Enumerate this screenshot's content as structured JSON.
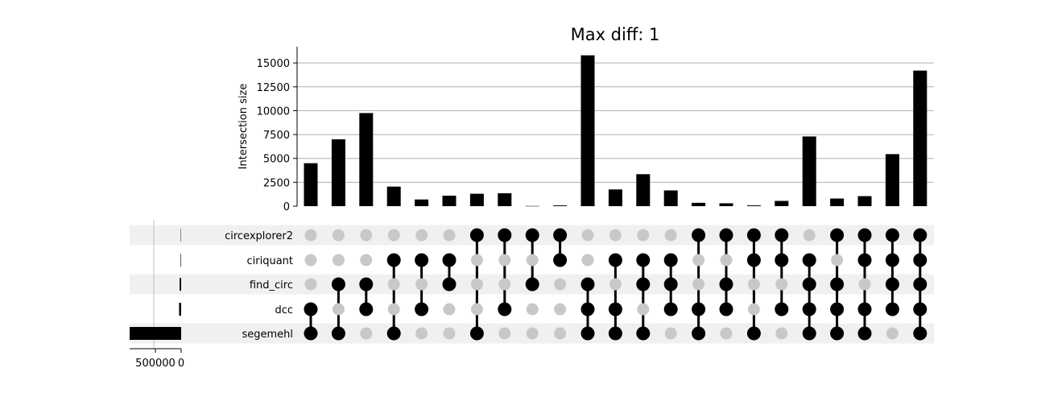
{
  "chart_data": {
    "type": "upset",
    "title": "Max diff: 1",
    "ylabel": "Intersection size",
    "ylim": [
      0,
      16700
    ],
    "yticks": [
      0,
      2500,
      5000,
      7500,
      10000,
      12500,
      15000
    ],
    "ytick_labels": [
      "0",
      "2500",
      "5000",
      "7500",
      "10000",
      "12500",
      "15000"
    ],
    "grid": true,
    "sets": [
      "circexplorer2",
      "ciriquant",
      "find_circ",
      "dcc",
      "segemehl"
    ],
    "set_sizes": [
      7000,
      10000,
      30000,
      40000,
      1000000
    ],
    "set_size_xlim": [
      1000000,
      0
    ],
    "set_size_ticks": [
      500000,
      0
    ],
    "set_size_tick_labels": [
      "500000",
      "0"
    ],
    "intersection_values": [
      4500,
      7000,
      9750,
      2050,
      700,
      1100,
      1300,
      1350,
      20,
      80,
      15800,
      1750,
      3350,
      1650,
      350,
      300,
      80,
      550,
      7300,
      800,
      1050,
      5450,
      14200
    ],
    "memberships": [
      [
        0,
        0,
        0,
        1,
        1
      ],
      [
        0,
        0,
        1,
        0,
        1
      ],
      [
        0,
        0,
        1,
        1,
        0
      ],
      [
        0,
        1,
        0,
        0,
        1
      ],
      [
        0,
        1,
        0,
        1,
        0
      ],
      [
        0,
        1,
        1,
        0,
        0
      ],
      [
        1,
        0,
        0,
        0,
        1
      ],
      [
        1,
        0,
        0,
        1,
        0
      ],
      [
        1,
        0,
        1,
        0,
        0
      ],
      [
        1,
        1,
        0,
        0,
        0
      ],
      [
        0,
        0,
        1,
        1,
        1
      ],
      [
        0,
        1,
        0,
        1,
        1
      ],
      [
        0,
        1,
        1,
        0,
        1
      ],
      [
        0,
        1,
        1,
        1,
        0
      ],
      [
        1,
        0,
        0,
        1,
        1
      ],
      [
        1,
        0,
        1,
        1,
        0
      ],
      [
        1,
        1,
        0,
        0,
        1
      ],
      [
        1,
        1,
        0,
        1,
        0
      ],
      [
        0,
        1,
        1,
        1,
        1
      ],
      [
        1,
        0,
        1,
        1,
        1
      ],
      [
        1,
        1,
        0,
        1,
        1
      ],
      [
        1,
        1,
        1,
        1,
        0
      ],
      [
        1,
        1,
        1,
        1,
        1
      ]
    ],
    "colors": {
      "bar": "#000000",
      "active_dot": "#000000",
      "inactive_dot": "#c8c8c8",
      "stripe": "#f0f0f0",
      "grid": "#b0b0b0"
    }
  }
}
